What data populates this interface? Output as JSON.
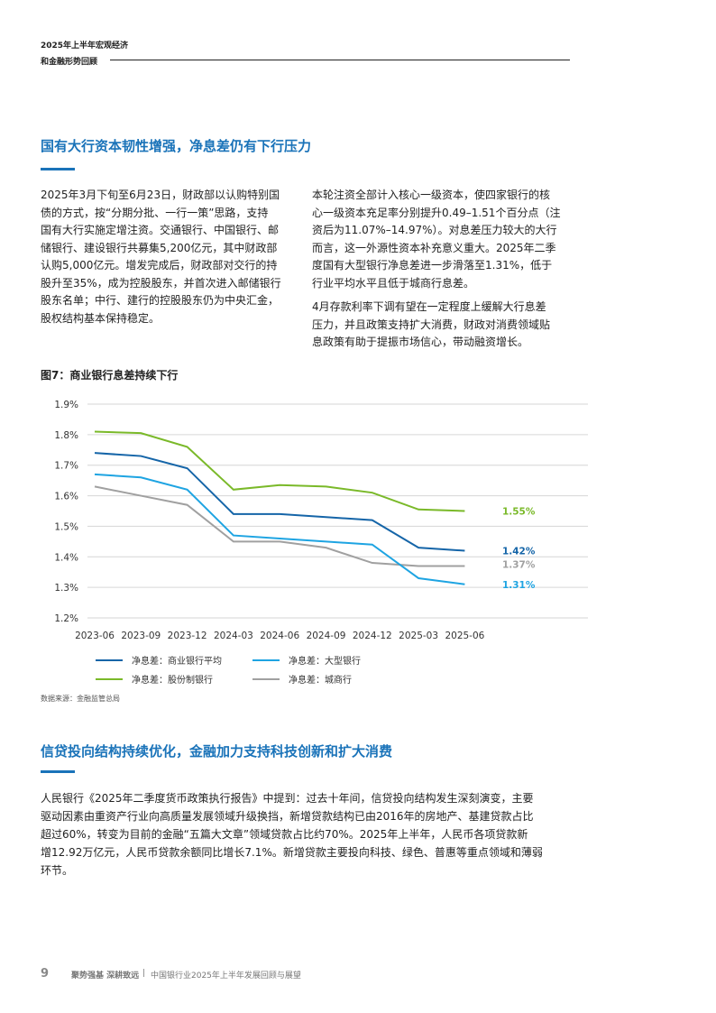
{
  "header": {
    "line1": "2025年上半年宏观经济",
    "line2": "和金融形势回顾"
  },
  "section1": {
    "title": "国有大行资本韧性增强，净息差仍有下行压力",
    "left_lines": [
      "2025年3月下旬至6月23日，财政部以认购特别国",
      "债的方式，按“分期分批、一行一策”思路，支持",
      "国有大行实施定增注资。交通银行、中国银行、邮",
      "储银行、建设银行共募集5,200亿元，其中财政部",
      "认购5,000亿元。增发完成后，财政部对交行的持",
      "股升至35%，成为控股股东，并首次进入邮储银行",
      "股东名单；中行、建行的控股股东仍为中央汇金，",
      "股权结构基本保持稳定。"
    ],
    "right_lines": [
      "本轮注资全部计入核心一级资本，使四家银行的核",
      "心一级资本充足率分别提升0.49–1.51个百分点（注",
      "资后为11.07%–14.97%）。对息差压力较大的大行",
      "而言，这一外源性资本补充意义重大。2025年二季",
      "度国有大型银行净息差进一步滑落至1.31%，低于",
      "行业平均水平且低于城商行息差。"
    ],
    "right_lines2": [
      "4月存款利率下调有望在一定程度上缓解大行息差",
      "压力，并且政策支持扩大消费，财政对消费领域贴",
      "息政策有助于提振市场信心，带动融资增长。"
    ]
  },
  "figure": {
    "title": "图7：商业银行息差持续下行",
    "source": "数据来源：金融监管总局"
  },
  "chart_data": {
    "type": "line",
    "categories": [
      "2023-06",
      "2023-09",
      "2023-12",
      "2024-03",
      "2024-06",
      "2024-09",
      "2024-12",
      "2025-03",
      "2025-06"
    ],
    "yticks": [
      "1.9%",
      "1.8%",
      "1.7%",
      "1.6%",
      "1.5%",
      "1.4%",
      "1.3%",
      "1.2%"
    ],
    "ylim": [
      1.2,
      1.9
    ],
    "grid": true,
    "legend_position": "bottom",
    "series": [
      {
        "name": "净息差：商业银行平均",
        "color": "#1565a8",
        "values": [
          1.74,
          1.73,
          1.69,
          1.54,
          1.54,
          1.53,
          1.52,
          1.43,
          1.42
        ],
        "end_label": "1.42%"
      },
      {
        "name": "净息差：大型银行",
        "color": "#1ea4e2",
        "values": [
          1.67,
          1.66,
          1.62,
          1.47,
          1.46,
          1.45,
          1.44,
          1.33,
          1.31
        ],
        "end_label": "1.31%"
      },
      {
        "name": "净息差：股份制银行",
        "color": "#7ab929",
        "values": [
          1.81,
          1.805,
          1.76,
          1.62,
          1.635,
          1.63,
          1.61,
          1.555,
          1.55
        ],
        "end_label": "1.55%"
      },
      {
        "name": "净息差：城商行",
        "color": "#a0a0a0",
        "values": [
          1.63,
          1.6,
          1.57,
          1.45,
          1.45,
          1.43,
          1.38,
          1.37,
          1.37
        ],
        "end_label": "1.37%"
      }
    ]
  },
  "section2": {
    "title": "信贷投向结构持续优化，金融加力支持科技创新和扩大消费",
    "lines": [
      "人民银行《2025年二季度货币政策执行报告》中提到：过去十年间，信贷投向结构发生深刻演变，主要",
      "驱动因素由重资产行业向高质量发展领域升级换挡，新增贷款结构已由2016年的房地产、基建贷款占比",
      "超过60%，转变为目前的金融“五篇大文章”领域贷款占比约70%。2025年上半年，人民币各项贷款新",
      "增12.92万亿元，人民币贷款余额同比增长7.1%。新增贷款主要投向科技、绿色、普惠等重点领域和薄弱",
      "环节。"
    ]
  },
  "footer": {
    "page": "9",
    "slogan": "聚势强基 深耕致远",
    "separator": "|",
    "title": "中国银行业2025年上半年发展回顾与展望"
  }
}
